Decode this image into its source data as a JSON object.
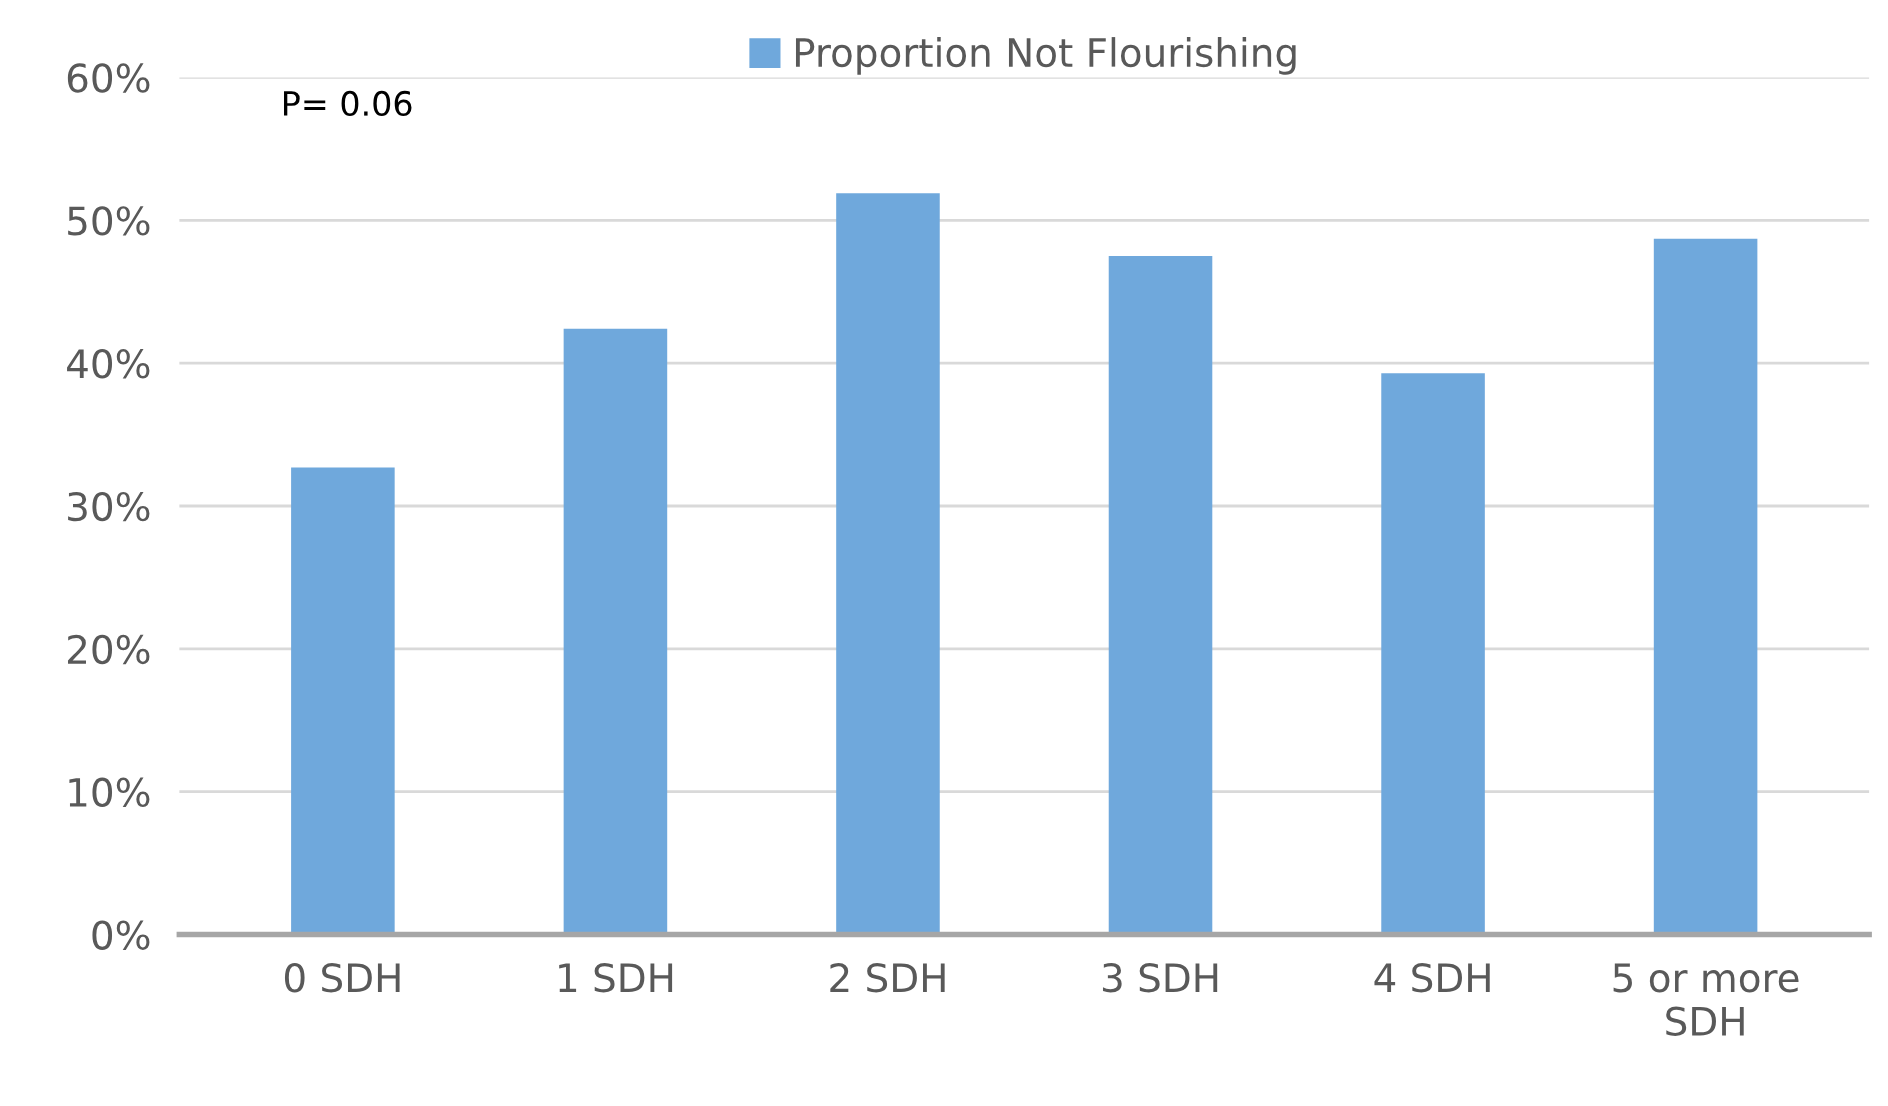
{
  "chart_data": {
    "type": "bar",
    "categories": [
      "0 SDH",
      "1 SDH",
      "2 SDH",
      "3 SDH",
      "4 SDH",
      "5 or more\nSDH"
    ],
    "series": [
      {
        "name": "Proportion Not Flourishing",
        "color": "#6fa8dc",
        "values": [
          32.7,
          42.4,
          51.9,
          47.5,
          39.3,
          48.7
        ]
      }
    ],
    "ylim": [
      0,
      60
    ],
    "yticks": [
      {
        "value": 0,
        "label": "0%"
      },
      {
        "value": 10,
        "label": "10%"
      },
      {
        "value": 20,
        "label": "20%"
      },
      {
        "value": 30,
        "label": "30%"
      },
      {
        "value": 40,
        "label": "40%"
      },
      {
        "value": 50,
        "label": "50%"
      },
      {
        "value": 60,
        "label": "60%"
      }
    ],
    "grid": "y",
    "legend": "top",
    "annotations": [
      "P= 0.06"
    ]
  }
}
